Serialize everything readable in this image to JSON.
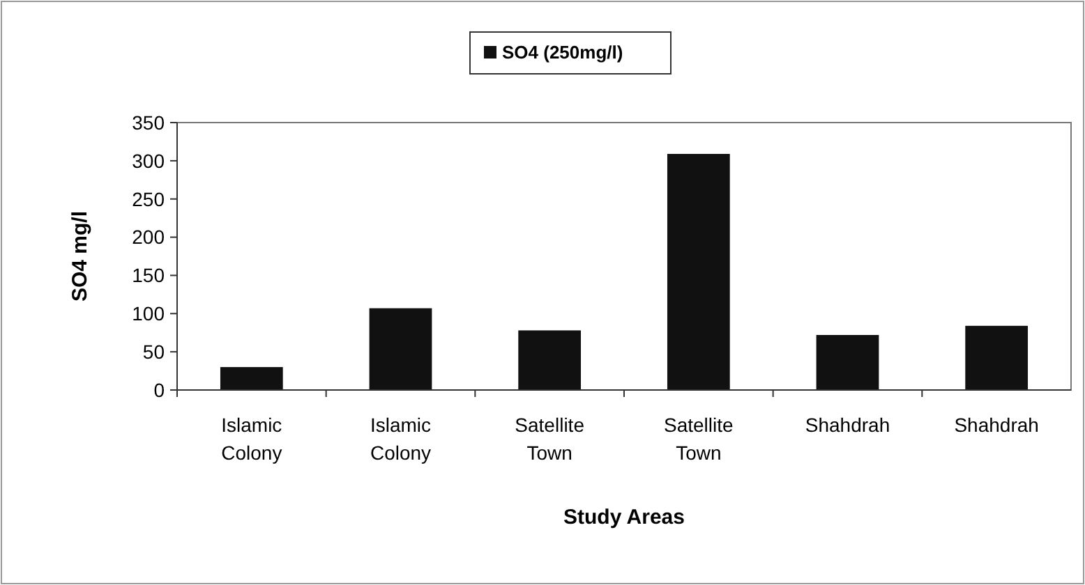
{
  "chart_data": {
    "type": "bar",
    "xlabel": "Study Areas",
    "ylabel": "SO4 mg/l",
    "categories": [
      "Islamic Colony",
      "Islamic Colony",
      "Satellite Town",
      "Satellite Town",
      "Shahdrah",
      "Shahdrah"
    ],
    "series": [
      {
        "name": "SO4 (250mg/l)",
        "color": "#111111",
        "values": [
          30,
          107,
          78,
          309,
          72,
          84
        ]
      }
    ],
    "ylim": [
      0,
      350
    ],
    "yticks": [
      0,
      50,
      100,
      150,
      200,
      250,
      300,
      350
    ],
    "legend": "top",
    "grid": false
  }
}
